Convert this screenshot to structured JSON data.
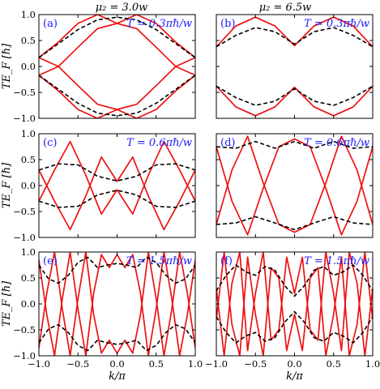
{
  "column_titles": [
    "μ₂ = 3.0w",
    "μ₂ = 6.5w"
  ],
  "colors": {
    "solid": "#ee1111",
    "dashed": "#000000",
    "annotation": "#1a1aff"
  },
  "chart_data": [
    {
      "panel": "(a)",
      "annotation": "T = 0.3πℏ/w",
      "mu2": 3.0,
      "T": 0.3,
      "type": "line",
      "xlabel": "",
      "ylabel": "TE_F [ℏ]",
      "xlim": [
        -1.0,
        1.0
      ],
      "ylim": [
        -1.0,
        1.0
      ],
      "xticks": [],
      "yticks": [
        "−1.0",
        "−0.5",
        "0.0",
        "0.5",
        "1.0"
      ],
      "series": [
        {
          "style": "solid",
          "x": [
            -1.0,
            -0.75,
            -0.5,
            -0.25,
            0.0,
            0.25,
            0.5,
            0.75,
            1.0
          ],
          "y": [
            0.17,
            0.47,
            0.83,
            1.0,
            0.83,
            1.0,
            0.83,
            0.47,
            0.17
          ]
        },
        {
          "style": "solid",
          "x": [
            -1.0,
            -0.75,
            -0.5,
            -0.25,
            0.0,
            0.25,
            0.5,
            0.75,
            1.0
          ],
          "y": [
            -0.17,
            -0.47,
            -0.83,
            -1.0,
            -0.83,
            -1.0,
            -0.83,
            -0.47,
            -0.17
          ]
        },
        {
          "style": "solid",
          "x": [
            -1.0,
            -0.75,
            -0.5,
            -0.25,
            0.0,
            0.25,
            0.5,
            0.75,
            1.0
          ],
          "y": [
            0.17,
            0.0,
            -0.37,
            -0.73,
            -0.83,
            -0.73,
            -0.37,
            0.0,
            0.17
          ]
        },
        {
          "style": "solid",
          "x": [
            -1.0,
            -0.75,
            -0.5,
            -0.25,
            0.0,
            0.25,
            0.5,
            0.75,
            1.0
          ],
          "y": [
            -0.17,
            0.0,
            0.37,
            0.73,
            0.83,
            0.73,
            0.37,
            0.0,
            -0.17
          ]
        },
        {
          "style": "dashed",
          "x": [
            -1.0,
            -0.75,
            -0.5,
            -0.25,
            0.0,
            0.25,
            0.5,
            0.75,
            1.0
          ],
          "y": [
            0.17,
            0.44,
            0.71,
            0.9,
            0.95,
            0.9,
            0.71,
            0.44,
            0.17
          ]
        },
        {
          "style": "dashed",
          "x": [
            -1.0,
            -0.75,
            -0.5,
            -0.25,
            0.0,
            0.25,
            0.5,
            0.75,
            1.0
          ],
          "y": [
            -0.17,
            -0.44,
            -0.71,
            -0.9,
            -0.95,
            -0.9,
            -0.71,
            -0.44,
            -0.17
          ]
        }
      ]
    },
    {
      "panel": "(b)",
      "annotation": "T = 0.3πℏ/w",
      "mu2": 6.5,
      "T": 0.3,
      "type": "line",
      "xlabel": "",
      "ylabel": "",
      "xlim": [
        -1.0,
        1.0
      ],
      "ylim": [
        -1.0,
        1.0
      ],
      "xticks": [],
      "yticks": [],
      "series": [
        {
          "style": "solid",
          "x": [
            -1.0,
            -0.75,
            -0.5,
            -0.25,
            0.0,
            0.25,
            0.5,
            0.75,
            1.0
          ],
          "y": [
            0.38,
            0.78,
            0.95,
            0.78,
            0.4,
            0.78,
            0.95,
            0.78,
            0.38
          ]
        },
        {
          "style": "solid",
          "x": [
            -1.0,
            -0.75,
            -0.5,
            -0.25,
            0.0,
            0.25,
            0.5,
            0.75,
            1.0
          ],
          "y": [
            -0.38,
            -0.78,
            -0.95,
            -0.78,
            -0.4,
            -0.78,
            -0.95,
            -0.78,
            -0.38
          ]
        },
        {
          "style": "dashed",
          "x": [
            -1.0,
            -0.75,
            -0.5,
            -0.25,
            0.0,
            0.25,
            0.5,
            0.75,
            1.0
          ],
          "y": [
            0.38,
            0.6,
            0.75,
            0.67,
            0.43,
            0.67,
            0.75,
            0.6,
            0.38
          ]
        },
        {
          "style": "dashed",
          "x": [
            -1.0,
            -0.75,
            -0.5,
            -0.25,
            0.0,
            0.25,
            0.5,
            0.75,
            1.0
          ],
          "y": [
            -0.38,
            -0.6,
            -0.75,
            -0.67,
            -0.43,
            -0.67,
            -0.75,
            -0.6,
            -0.38
          ]
        }
      ]
    },
    {
      "panel": "(c)",
      "annotation": "T = 0.6πℏ/w",
      "mu2": 3.0,
      "T": 0.6,
      "type": "line",
      "xlabel": "",
      "ylabel": "TE_F [ℏ]",
      "xlim": [
        -1.0,
        1.0
      ],
      "ylim": [
        -1.0,
        1.0
      ],
      "xticks": [],
      "yticks": [
        "−1.0",
        "−0.5",
        "0.0",
        "0.5",
        "1.0"
      ],
      "series": [
        {
          "style": "solid",
          "x": [
            -1.0,
            -0.8,
            -0.6,
            -0.4,
            -0.2,
            0.0,
            0.2,
            0.4,
            0.6,
            0.8,
            1.0
          ],
          "y": [
            0.3,
            -0.3,
            -0.85,
            -0.2,
            0.55,
            0.08,
            0.55,
            -0.2,
            -0.85,
            -0.3,
            0.3
          ]
        },
        {
          "style": "solid",
          "x": [
            -1.0,
            -0.8,
            -0.6,
            -0.4,
            -0.2,
            0.0,
            0.2,
            0.4,
            0.6,
            0.8,
            1.0
          ],
          "y": [
            -0.3,
            0.3,
            0.85,
            0.2,
            -0.55,
            -0.08,
            -0.55,
            0.2,
            0.85,
            0.3,
            -0.3
          ]
        },
        {
          "style": "dashed",
          "x": [
            -1.0,
            -0.75,
            -0.5,
            -0.25,
            0.0,
            0.25,
            0.5,
            0.75,
            1.0
          ],
          "y": [
            0.3,
            0.42,
            0.4,
            0.18,
            0.09,
            0.18,
            0.4,
            0.42,
            0.3
          ]
        },
        {
          "style": "dashed",
          "x": [
            -1.0,
            -0.75,
            -0.5,
            -0.25,
            0.0,
            0.25,
            0.5,
            0.75,
            1.0
          ],
          "y": [
            -0.3,
            -0.42,
            -0.4,
            -0.18,
            -0.09,
            -0.18,
            -0.4,
            -0.42,
            -0.3
          ]
        }
      ]
    },
    {
      "panel": "(d)",
      "annotation": "T = 0.6πℏ/w",
      "mu2": 6.5,
      "T": 0.6,
      "type": "line",
      "xlabel": "",
      "ylabel": "",
      "xlim": [
        -1.0,
        1.0
      ],
      "ylim": [
        -1.0,
        1.0
      ],
      "xticks": [],
      "yticks": [],
      "series": [
        {
          "style": "solid",
          "x": [
            -1.0,
            -0.8,
            -0.6,
            -0.4,
            -0.2,
            0.0,
            0.2,
            0.4,
            0.6,
            0.8,
            1.0
          ],
          "y": [
            -0.75,
            0.3,
            0.95,
            0.05,
            -0.75,
            -0.9,
            -0.75,
            0.05,
            0.95,
            0.3,
            -0.75
          ]
        },
        {
          "style": "solid",
          "x": [
            -1.0,
            -0.8,
            -0.6,
            -0.4,
            -0.2,
            0.0,
            0.2,
            0.4,
            0.6,
            0.8,
            1.0
          ],
          "y": [
            0.75,
            -0.3,
            -0.95,
            -0.05,
            0.75,
            0.9,
            0.75,
            -0.05,
            -0.95,
            -0.3,
            0.75
          ]
        },
        {
          "style": "dashed",
          "x": [
            -1.0,
            -0.75,
            -0.5,
            -0.25,
            0.0,
            0.25,
            0.5,
            0.75,
            1.0
          ],
          "y": [
            0.75,
            0.72,
            0.85,
            0.72,
            0.85,
            0.72,
            0.85,
            0.72,
            0.75
          ]
        },
        {
          "style": "dashed",
          "x": [
            -1.0,
            -0.75,
            -0.5,
            -0.25,
            0.0,
            0.25,
            0.5,
            0.75,
            1.0
          ],
          "y": [
            -0.75,
            -0.72,
            -0.6,
            -0.72,
            -0.85,
            -0.72,
            -0.6,
            -0.72,
            -0.75
          ]
        }
      ]
    },
    {
      "panel": "(e)",
      "annotation": "T = 1.5πℏ/w",
      "mu2": 3.0,
      "T": 1.5,
      "type": "line",
      "xlabel": "k/π",
      "ylabel": "TE_F [ℏ]",
      "xlim": [
        -1.0,
        1.0
      ],
      "ylim": [
        -1.0,
        1.0
      ],
      "xticks": [
        "−1.0",
        "−0.5",
        "0.0",
        "0.5",
        "1.0"
      ],
      "yticks": [
        "−1.0",
        "−0.5",
        "0.0",
        "0.5",
        "1.0"
      ],
      "series": [
        {
          "style": "solid",
          "x": [
            -1.0,
            -0.9,
            -0.8,
            -0.7,
            -0.6,
            -0.5,
            -0.4,
            -0.3,
            -0.2,
            -0.1,
            0.0,
            0.1,
            0.2,
            0.3,
            0.4,
            0.5,
            0.6,
            0.7,
            0.8,
            0.9,
            1.0
          ],
          "y": [
            0.85,
            -0.2,
            -1.0,
            0.1,
            1.0,
            -0.1,
            -1.0,
            0.2,
            0.95,
            0.7,
            0.95,
            0.7,
            0.95,
            0.2,
            -1.0,
            -0.1,
            1.0,
            0.1,
            -1.0,
            -0.2,
            0.85
          ]
        },
        {
          "style": "solid",
          "x": [
            -1.0,
            -0.9,
            -0.8,
            -0.7,
            -0.6,
            -0.5,
            -0.4,
            -0.3,
            -0.2,
            -0.1,
            0.0,
            0.1,
            0.2,
            0.3,
            0.4,
            0.5,
            0.6,
            0.7,
            0.8,
            0.9,
            1.0
          ],
          "y": [
            -0.85,
            0.2,
            1.0,
            -0.1,
            -1.0,
            0.1,
            1.0,
            -0.2,
            -0.95,
            -0.7,
            -0.95,
            -0.7,
            -0.95,
            -0.2,
            1.0,
            0.1,
            -1.0,
            -0.1,
            1.0,
            0.2,
            -0.85
          ]
        },
        {
          "style": "dashed",
          "x": [
            -1.0,
            -0.875,
            -0.75,
            -0.625,
            -0.5,
            -0.375,
            -0.25,
            -0.125,
            0.0,
            0.125,
            0.25,
            0.375,
            0.5,
            0.625,
            0.75,
            0.875,
            1.0
          ],
          "y": [
            0.75,
            0.48,
            0.4,
            0.55,
            0.8,
            0.9,
            0.7,
            0.75,
            0.78,
            0.75,
            0.7,
            0.9,
            0.8,
            0.55,
            0.4,
            0.48,
            0.75
          ]
        },
        {
          "style": "dashed",
          "x": [
            -1.0,
            -0.875,
            -0.75,
            -0.625,
            -0.5,
            -0.375,
            -0.25,
            -0.125,
            0.0,
            0.125,
            0.25,
            0.375,
            0.5,
            0.625,
            0.75,
            0.875,
            1.0
          ],
          "y": [
            -0.75,
            -0.48,
            -0.4,
            -0.55,
            -0.8,
            -0.9,
            -0.7,
            -0.75,
            -0.78,
            -0.75,
            -0.7,
            -0.9,
            -0.8,
            -0.55,
            -0.4,
            -0.48,
            -0.75
          ]
        }
      ]
    },
    {
      "panel": "(f)",
      "annotation": "T = 1.5πℏ/w",
      "mu2": 6.5,
      "T": 1.5,
      "type": "line",
      "xlabel": "k/π",
      "ylabel": "",
      "xlim": [
        -1.0,
        1.0
      ],
      "ylim": [
        -1.0,
        1.0
      ],
      "xticks": [
        "−1.0",
        "−0.5",
        "0.0",
        "0.5",
        "1.0"
      ],
      "yticks": [],
      "series": [
        {
          "style": "solid",
          "x": [
            -1.0,
            -0.9,
            -0.8,
            -0.7,
            -0.6,
            -0.5,
            -0.4,
            -0.3,
            -0.2,
            -0.1,
            0.0,
            0.1,
            0.2,
            0.3,
            0.4,
            0.5,
            0.6,
            0.7,
            0.8,
            0.9,
            1.0
          ],
          "y": [
            0.3,
            -1.0,
            0.4,
            1.0,
            -0.9,
            0.2,
            1.0,
            -0.7,
            -0.5,
            0.9,
            0.2,
            0.9,
            -0.5,
            -0.7,
            1.0,
            0.2,
            -0.9,
            1.0,
            0.4,
            -1.0,
            0.3
          ]
        },
        {
          "style": "solid",
          "x": [
            -1.0,
            -0.9,
            -0.8,
            -0.7,
            -0.6,
            -0.5,
            -0.4,
            -0.3,
            -0.2,
            -0.1,
            0.0,
            0.1,
            0.2,
            0.3,
            0.4,
            0.5,
            0.6,
            0.7,
            0.8,
            0.9,
            1.0
          ],
          "y": [
            -0.3,
            1.0,
            -0.4,
            -1.0,
            0.9,
            -0.2,
            -1.0,
            0.7,
            0.5,
            -0.9,
            -0.2,
            -0.9,
            0.5,
            0.7,
            -1.0,
            -0.2,
            0.9,
            -1.0,
            -0.4,
            1.0,
            -0.3
          ]
        },
        {
          "style": "dashed",
          "x": [
            -1.0,
            -0.875,
            -0.75,
            -0.625,
            -0.5,
            -0.375,
            -0.25,
            -0.125,
            0.0,
            0.125,
            0.25,
            0.375,
            0.5,
            0.625,
            0.75,
            0.875,
            1.0
          ],
          "y": [
            0.25,
            0.55,
            0.75,
            0.62,
            0.55,
            0.72,
            0.65,
            0.35,
            0.15,
            0.35,
            0.65,
            0.72,
            0.55,
            0.62,
            0.75,
            0.55,
            0.25
          ]
        },
        {
          "style": "dashed",
          "x": [
            -1.0,
            -0.875,
            -0.75,
            -0.625,
            -0.5,
            -0.375,
            -0.25,
            -0.125,
            0.0,
            0.125,
            0.25,
            0.375,
            0.5,
            0.625,
            0.75,
            0.875,
            1.0
          ],
          "y": [
            -0.25,
            -0.55,
            -0.75,
            -0.62,
            -0.55,
            -0.72,
            -0.65,
            -0.35,
            -0.15,
            -0.35,
            -0.65,
            -0.72,
            -0.55,
            -0.62,
            -0.75,
            -0.55,
            -0.25
          ]
        }
      ]
    }
  ]
}
